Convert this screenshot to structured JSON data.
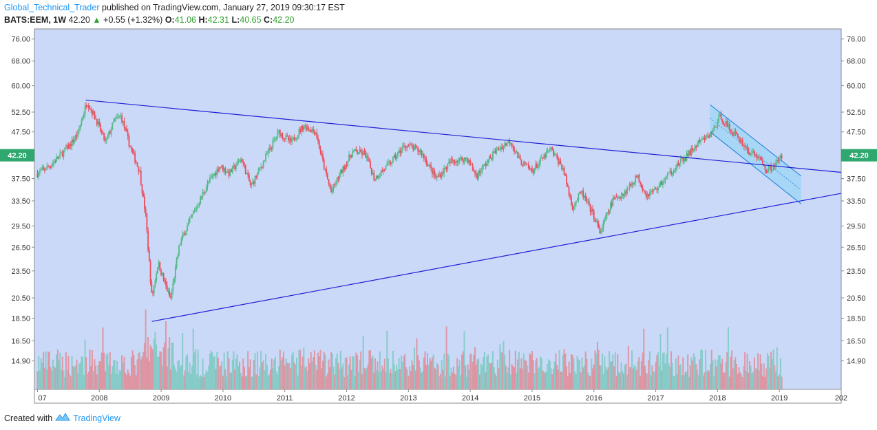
{
  "header": {
    "author": "Global_Technical_Trader",
    "published": "published on TradingView.com, January 27, 2019 09:30:17 EST",
    "symbol": "BATS:EEM, 1W",
    "last": "42.20",
    "change": "+0.55 (+1.32%)",
    "open_label": "O:",
    "open": "41.06",
    "high_label": "H:",
    "high": "42.31",
    "low_label": "L:",
    "low": "40.65",
    "close_label": "C:",
    "close": "42.20"
  },
  "footer": {
    "created_with": "Created with",
    "brand": "TradingView",
    "logo_icon": "tradingview-logo-icon"
  },
  "colors": {
    "background": "#c9d9f7",
    "up": "#53b987",
    "down": "#eb4d5c",
    "trendline": "#1f1fd6",
    "channel": "#7fd3f5",
    "price_badge": "#2fa86f"
  },
  "chart_data": {
    "type": "candlestick",
    "price_scale_ticks": [
      "76.00",
      "68.00",
      "60.00",
      "52.50",
      "47.50",
      "42.50",
      "37.50",
      "33.50",
      "29.50",
      "26.50",
      "23.50",
      "20.50",
      "18.50",
      "16.50",
      "14.90"
    ],
    "time_labels": [
      "07",
      "2008",
      "2009",
      "2010",
      "2011",
      "2012",
      "2013",
      "2014",
      "2015",
      "2016",
      "2017",
      "2018",
      "2019",
      "202"
    ],
    "last_price_badge": "42.20",
    "log_scale": true,
    "price_range": [
      12.9,
      80.0
    ],
    "time_range": [
      2006.95,
      2020.0
    ],
    "approx_closes": [
      {
        "t": 2007.0,
        "p": 38.5
      },
      {
        "t": 2007.2,
        "p": 40.0
      },
      {
        "t": 2007.5,
        "p": 44.0
      },
      {
        "t": 2007.65,
        "p": 47.0
      },
      {
        "t": 2007.8,
        "p": 55.5
      },
      {
        "t": 2007.95,
        "p": 50.5
      },
      {
        "t": 2008.1,
        "p": 45.0
      },
      {
        "t": 2008.25,
        "p": 50.5
      },
      {
        "t": 2008.35,
        "p": 51.5
      },
      {
        "t": 2008.5,
        "p": 44.0
      },
      {
        "t": 2008.65,
        "p": 39.0
      },
      {
        "t": 2008.75,
        "p": 31.0
      },
      {
        "t": 2008.85,
        "p": 20.5
      },
      {
        "t": 2008.95,
        "p": 24.5
      },
      {
        "t": 2009.15,
        "p": 20.3
      },
      {
        "t": 2009.3,
        "p": 27.0
      },
      {
        "t": 2009.5,
        "p": 31.0
      },
      {
        "t": 2009.75,
        "p": 36.5
      },
      {
        "t": 2009.95,
        "p": 40.0
      },
      {
        "t": 2010.1,
        "p": 38.5
      },
      {
        "t": 2010.3,
        "p": 41.5
      },
      {
        "t": 2010.45,
        "p": 36.0
      },
      {
        "t": 2010.7,
        "p": 42.0
      },
      {
        "t": 2010.9,
        "p": 47.5
      },
      {
        "t": 2011.1,
        "p": 45.0
      },
      {
        "t": 2011.3,
        "p": 49.0
      },
      {
        "t": 2011.5,
        "p": 47.5
      },
      {
        "t": 2011.65,
        "p": 39.0
      },
      {
        "t": 2011.75,
        "p": 35.0
      },
      {
        "t": 2011.9,
        "p": 38.5
      },
      {
        "t": 2012.1,
        "p": 43.0
      },
      {
        "t": 2012.3,
        "p": 42.5
      },
      {
        "t": 2012.45,
        "p": 37.5
      },
      {
        "t": 2012.7,
        "p": 40.5
      },
      {
        "t": 2012.95,
        "p": 44.5
      },
      {
        "t": 2013.2,
        "p": 43.0
      },
      {
        "t": 2013.45,
        "p": 37.5
      },
      {
        "t": 2013.7,
        "p": 41.0
      },
      {
        "t": 2013.95,
        "p": 41.5
      },
      {
        "t": 2014.1,
        "p": 38.0
      },
      {
        "t": 2014.4,
        "p": 43.0
      },
      {
        "t": 2014.65,
        "p": 45.5
      },
      {
        "t": 2014.8,
        "p": 41.0
      },
      {
        "t": 2015.0,
        "p": 39.0
      },
      {
        "t": 2015.3,
        "p": 43.5
      },
      {
        "t": 2015.5,
        "p": 39.5
      },
      {
        "t": 2015.65,
        "p": 32.5
      },
      {
        "t": 2015.8,
        "p": 35.0
      },
      {
        "t": 2016.0,
        "p": 31.0
      },
      {
        "t": 2016.1,
        "p": 28.5
      },
      {
        "t": 2016.3,
        "p": 33.5
      },
      {
        "t": 2016.5,
        "p": 35.0
      },
      {
        "t": 2016.7,
        "p": 38.0
      },
      {
        "t": 2016.85,
        "p": 34.5
      },
      {
        "t": 2017.0,
        "p": 35.5
      },
      {
        "t": 2017.3,
        "p": 39.5
      },
      {
        "t": 2017.5,
        "p": 42.0
      },
      {
        "t": 2017.7,
        "p": 45.0
      },
      {
        "t": 2017.9,
        "p": 47.0
      },
      {
        "t": 2018.05,
        "p": 51.5
      },
      {
        "t": 2018.2,
        "p": 48.0
      },
      {
        "t": 2018.35,
        "p": 46.0
      },
      {
        "t": 2018.5,
        "p": 43.0
      },
      {
        "t": 2018.65,
        "p": 42.0
      },
      {
        "t": 2018.8,
        "p": 39.0
      },
      {
        "t": 2018.95,
        "p": 40.5
      },
      {
        "t": 2019.05,
        "p": 42.2
      }
    ],
    "trendlines": [
      {
        "name": "upper",
        "from": {
          "t": 2007.78,
          "p": 55.8
        },
        "to": {
          "t": 2020.0,
          "p": 38.7
        }
      },
      {
        "name": "lower",
        "from": {
          "t": 2008.85,
          "p": 18.2
        },
        "to": {
          "t": 2020.0,
          "p": 34.8
        }
      }
    ],
    "channel": {
      "top": [
        {
          "t": 2017.88,
          "p": 54.5
        },
        {
          "t": 2019.35,
          "p": 38.0
        }
      ],
      "bottom": [
        {
          "t": 2017.88,
          "p": 47.5
        },
        {
          "t": 2019.35,
          "p": 33.0
        }
      ]
    },
    "volume_present": true
  }
}
